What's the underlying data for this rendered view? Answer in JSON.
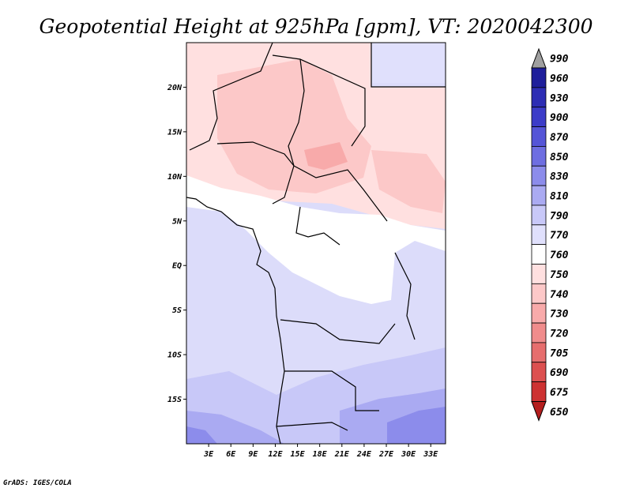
{
  "title": "Geopotential Height at 925hPa [gpm], VT: 2020042300",
  "credit": "GrADS: IGES/COLA",
  "y_axis": {
    "ticks": [
      {
        "label": "20N",
        "lat": 20
      },
      {
        "label": "15N",
        "lat": 15
      },
      {
        "label": "10N",
        "lat": 10
      },
      {
        "label": "5N",
        "lat": 5
      },
      {
        "label": "EQ",
        "lat": 0
      },
      {
        "label": "5S",
        "lat": -5
      },
      {
        "label": "10S",
        "lat": -10
      },
      {
        "label": "15S",
        "lat": -15
      }
    ]
  },
  "x_axis": {
    "ticks": [
      {
        "label": "3E",
        "lon": 3
      },
      {
        "label": "6E",
        "lon": 6
      },
      {
        "label": "9E",
        "lon": 9
      },
      {
        "label": "12E",
        "lon": 12
      },
      {
        "label": "15E",
        "lon": 15
      },
      {
        "label": "18E",
        "lon": 18
      },
      {
        "label": "21E",
        "lon": 21
      },
      {
        "label": "24E",
        "lon": 24
      },
      {
        "label": "27E",
        "lon": 27
      },
      {
        "label": "30E",
        "lon": 30
      },
      {
        "label": "33E",
        "lon": 33
      }
    ]
  },
  "map_extent": {
    "lon_min": 0,
    "lon_max": 35,
    "lat_min": -20,
    "lat_max": 25
  },
  "colorbar": {
    "levels": [
      "990",
      "960",
      "930",
      "900",
      "870",
      "850",
      "830",
      "810",
      "790",
      "770",
      "760",
      "750",
      "740",
      "730",
      "720",
      "705",
      "690",
      "675",
      "650"
    ],
    "colors": [
      "#141482",
      "#1e1e9b",
      "#2d2db4",
      "#3c3cc8",
      "#5555d7",
      "#6e6ee1",
      "#8c8ceb",
      "#aaaaf2",
      "#c8c8f8",
      "#e0e0fc",
      "#ffffff",
      "#ffe0e0",
      "#fcc8c8",
      "#f8aaaa",
      "#f08c8c",
      "#e66e6e",
      "#dc5050",
      "#cd3232",
      "#b41e1e"
    ],
    "top_arrow_color": "#a0a0a0",
    "bottom_arrow_color": "#b41e1e"
  }
}
